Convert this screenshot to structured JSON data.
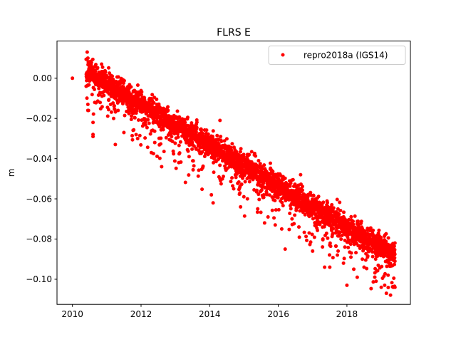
{
  "chart_data": {
    "type": "scatter",
    "title": "FLRS E",
    "xlabel": "",
    "ylabel": "m",
    "xlim": [
      2009.55,
      2019.85
    ],
    "ylim": [
      -0.1125,
      0.0185
    ],
    "x_ticks": [
      2010,
      2012,
      2014,
      2016,
      2018
    ],
    "x_tick_labels": [
      "2010",
      "2012",
      "2014",
      "2016",
      "2018"
    ],
    "y_ticks": [
      0.0,
      -0.02,
      -0.04,
      -0.06,
      -0.08,
      -0.1
    ],
    "y_tick_labels": [
      "0.00",
      "−0.02",
      "−0.04",
      "−0.06",
      "−0.08",
      "−0.10"
    ],
    "legend_position": "top-right",
    "grid": false,
    "series": [
      {
        "name": "repro2018a (IGS14)",
        "color": "#ff0000",
        "marker": "circle",
        "trend": {
          "start": [
            2010.4,
            0.004
          ],
          "end": [
            2019.4,
            -0.088
          ],
          "scatter_sd": 0.003,
          "outlier_rate": 0.18,
          "outlier_depth_max": 0.025,
          "approx_count": 3000
        },
        "points": [
          [
            2010.0,
            0.0
          ],
          [
            2010.43,
            0.013
          ],
          [
            2010.45,
            0.01
          ],
          [
            2010.4,
            -0.004
          ],
          [
            2010.45,
            -0.013
          ],
          [
            2010.45,
            -0.016
          ],
          [
            2010.6,
            -0.022
          ],
          [
            2010.6,
            -0.028
          ],
          [
            2010.6,
            -0.029
          ],
          [
            2010.8,
            -0.008
          ],
          [
            2010.85,
            0.007
          ],
          [
            2011.2,
            -0.02
          ],
          [
            2011.25,
            -0.033
          ],
          [
            2011.5,
            -0.027
          ],
          [
            2011.9,
            -0.03
          ],
          [
            2012.3,
            -0.037
          ],
          [
            2012.4,
            -0.032
          ],
          [
            2012.6,
            -0.044
          ],
          [
            2013.1,
            -0.042
          ],
          [
            2013.4,
            -0.039
          ],
          [
            2013.6,
            -0.035
          ],
          [
            2014.05,
            -0.058
          ],
          [
            2014.1,
            -0.062
          ],
          [
            2014.3,
            -0.05
          ],
          [
            2014.3,
            -0.021
          ],
          [
            2014.7,
            -0.055
          ],
          [
            2014.9,
            -0.064
          ],
          [
            2015.1,
            -0.06
          ],
          [
            2015.4,
            -0.065
          ],
          [
            2015.6,
            -0.072
          ],
          [
            2015.7,
            -0.069
          ],
          [
            2016.1,
            -0.075
          ],
          [
            2016.2,
            -0.085
          ],
          [
            2016.4,
            -0.07
          ],
          [
            2016.6,
            -0.074
          ],
          [
            2016.65,
            -0.048
          ],
          [
            2016.9,
            -0.077
          ],
          [
            2017.0,
            -0.086
          ],
          [
            2017.3,
            -0.08
          ],
          [
            2017.35,
            -0.094
          ],
          [
            2017.5,
            -0.083
          ],
          [
            2017.5,
            -0.094
          ],
          [
            2017.9,
            -0.092
          ],
          [
            2018.0,
            -0.103
          ],
          [
            2018.2,
            -0.095
          ],
          [
            2018.3,
            -0.099
          ],
          [
            2018.45,
            -0.09
          ],
          [
            2018.6,
            -0.089
          ],
          [
            2018.85,
            -0.101
          ],
          [
            2019.0,
            -0.104
          ],
          [
            2019.1,
            -0.103
          ],
          [
            2019.15,
            -0.107
          ],
          [
            2019.2,
            -0.098
          ],
          [
            2019.35,
            -0.104
          ],
          [
            2019.4,
            -0.104
          ],
          [
            2019.4,
            -0.082
          ],
          [
            2019.3,
            -0.09
          ]
        ]
      }
    ]
  }
}
